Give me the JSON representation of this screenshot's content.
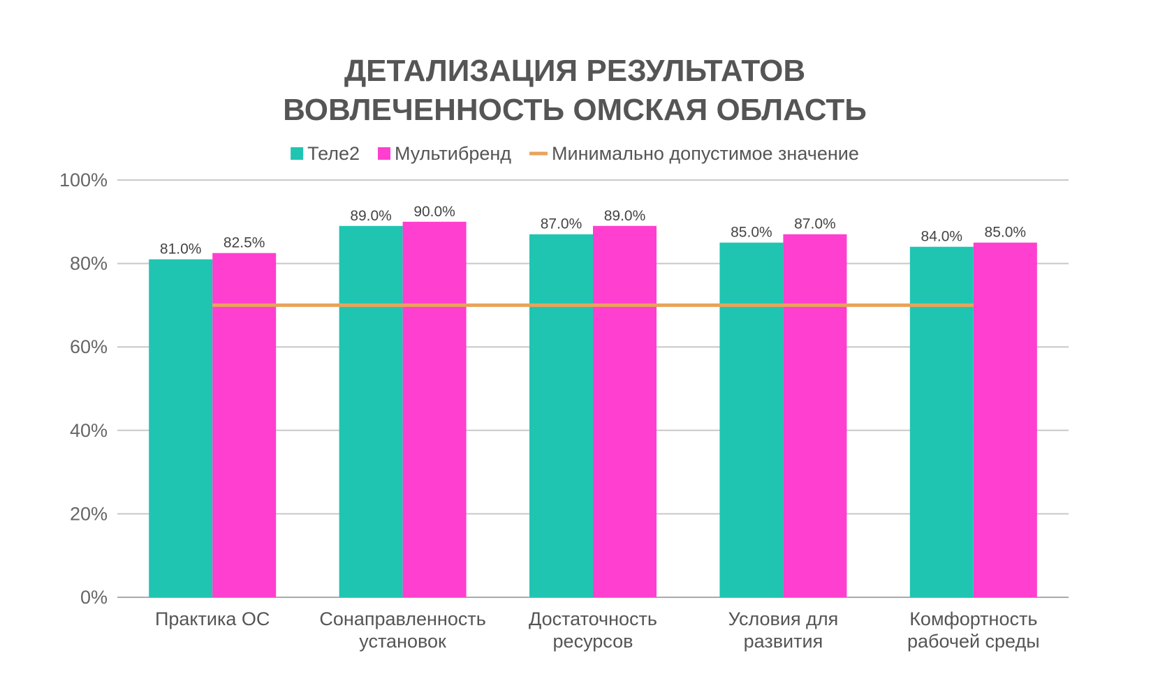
{
  "chart_data": {
    "type": "bar",
    "title_lines": [
      "ДЕТАЛИЗАЦИЯ РЕЗУЛЬТАТОВ",
      "ВОВЛЕЧЕННОСТЬ ОМСКАЯ ОБЛАСТЬ"
    ],
    "categories": [
      [
        "Практика ОС"
      ],
      [
        "Сонаправленность",
        "установок"
      ],
      [
        "Достаточность",
        "ресурсов"
      ],
      [
        "Условия для",
        "развития"
      ],
      [
        "Комфортность",
        "рабочей среды"
      ]
    ],
    "series": [
      {
        "name": "Теле2",
        "color": "#20c5b2",
        "values": [
          81.0,
          89.0,
          87.0,
          85.0,
          84.0
        ],
        "labels": [
          "81.0%",
          "89.0%",
          "87.0%",
          "85.0%",
          "84.0%"
        ]
      },
      {
        "name": "Мультибренд",
        "color": "#ff3fcf",
        "values": [
          82.5,
          90.0,
          89.0,
          87.0,
          85.0
        ],
        "labels": [
          "82.5%",
          "90.0%",
          "89.0%",
          "87.0%",
          "85.0%"
        ]
      }
    ],
    "reference_line": {
      "name": "Минимально допустимое значение",
      "value": 70,
      "color": "#e8a35a"
    },
    "y_ticks": [
      "0%",
      "20%",
      "40%",
      "60%",
      "80%",
      "100%"
    ],
    "ylim": [
      0,
      100
    ],
    "grid": true,
    "legend_position": "top"
  }
}
